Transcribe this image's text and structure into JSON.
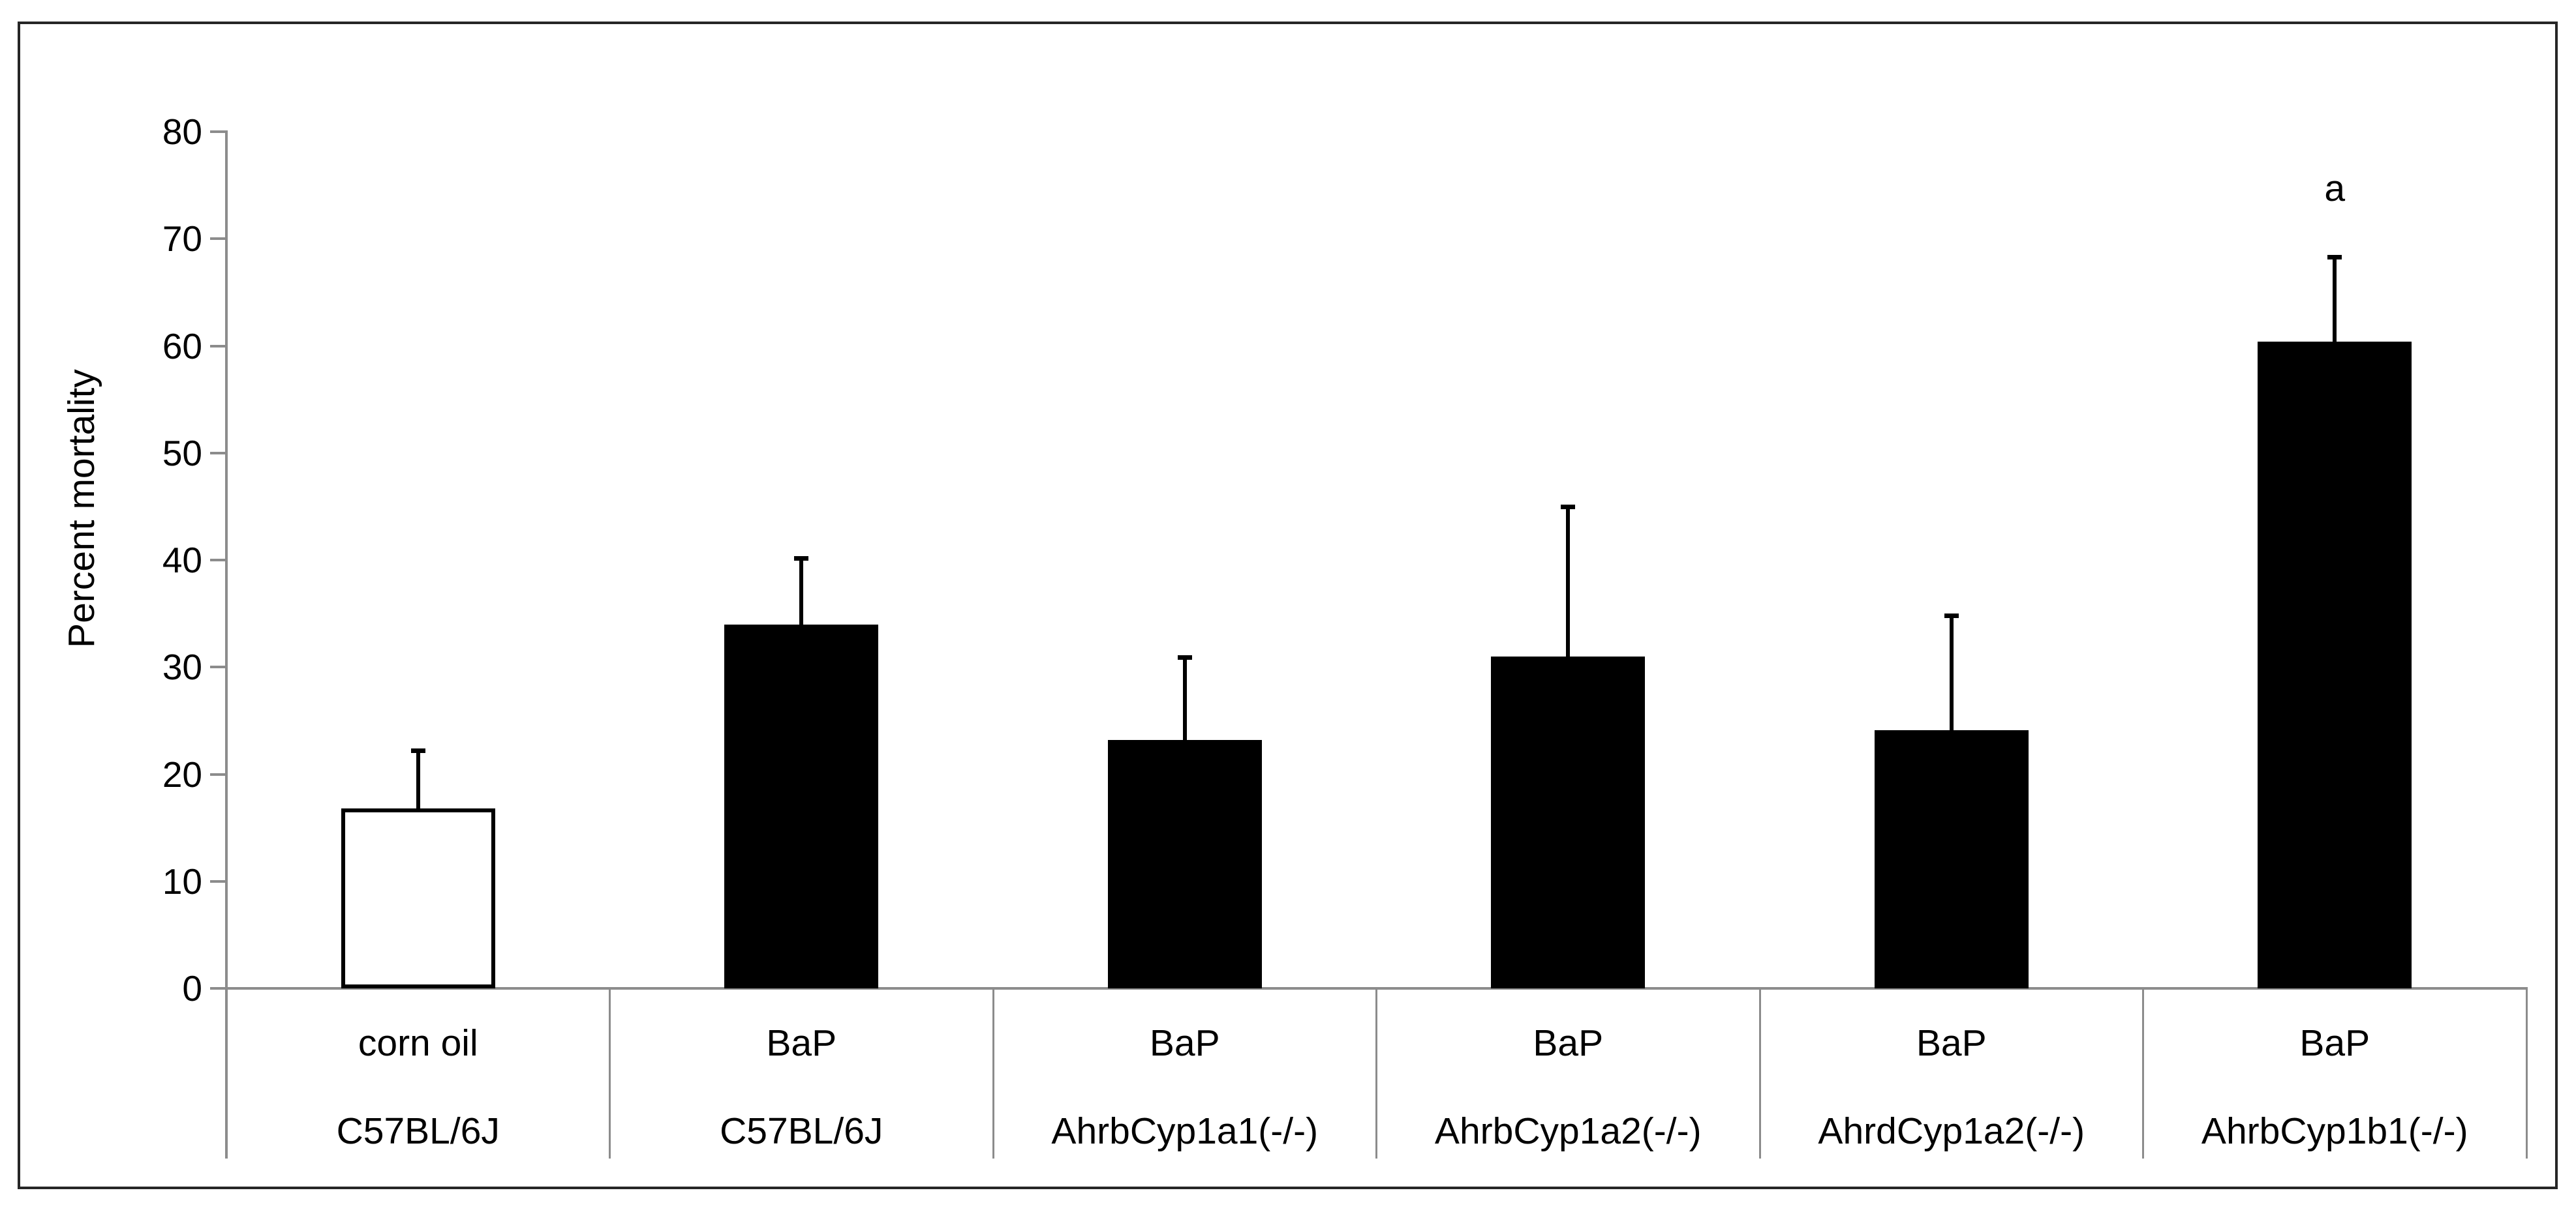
{
  "chart_data": {
    "type": "bar",
    "title": "",
    "xlabel": "",
    "ylabel": "Percent mortality",
    "ylim": [
      0,
      80
    ],
    "yticks": [
      0,
      10,
      20,
      30,
      40,
      50,
      60,
      70,
      80
    ],
    "grid": "off",
    "legend": "none",
    "categories": [
      {
        "treatment": "corn oil",
        "strain": "C57BL/6J"
      },
      {
        "treatment": "BaP",
        "strain": "C57BL/6J"
      },
      {
        "treatment": "BaP",
        "strain": "AhrbCyp1a1(-/-)"
      },
      {
        "treatment": "BaP",
        "strain": "AhrbCyp1a2(-/-)"
      },
      {
        "treatment": "BaP",
        "strain": "AhrdCyp1a2(-/-)"
      },
      {
        "treatment": "BaP",
        "strain": "AhrbCyp1b1(-/-)"
      }
    ],
    "series": [
      {
        "name": "Percent mortality",
        "values": [
          16.8,
          34.0,
          23.2,
          31.0,
          24.1,
          60.4
        ],
        "error_plus": [
          5.4,
          6.2,
          7.7,
          14.0,
          10.7,
          7.9
        ]
      }
    ],
    "bar_fills": [
      "#ffffff",
      "#000000",
      "#000000",
      "#000000",
      "#000000",
      "#000000"
    ],
    "annotations": [
      {
        "text": "a",
        "bar_index": 5,
        "position": "above-error-bar"
      }
    ],
    "colors": {
      "axis": "#8c8c8c",
      "bar_outline": "#000000",
      "error_bar": "#000000",
      "frame": "#262626",
      "background": "#ffffff"
    }
  }
}
